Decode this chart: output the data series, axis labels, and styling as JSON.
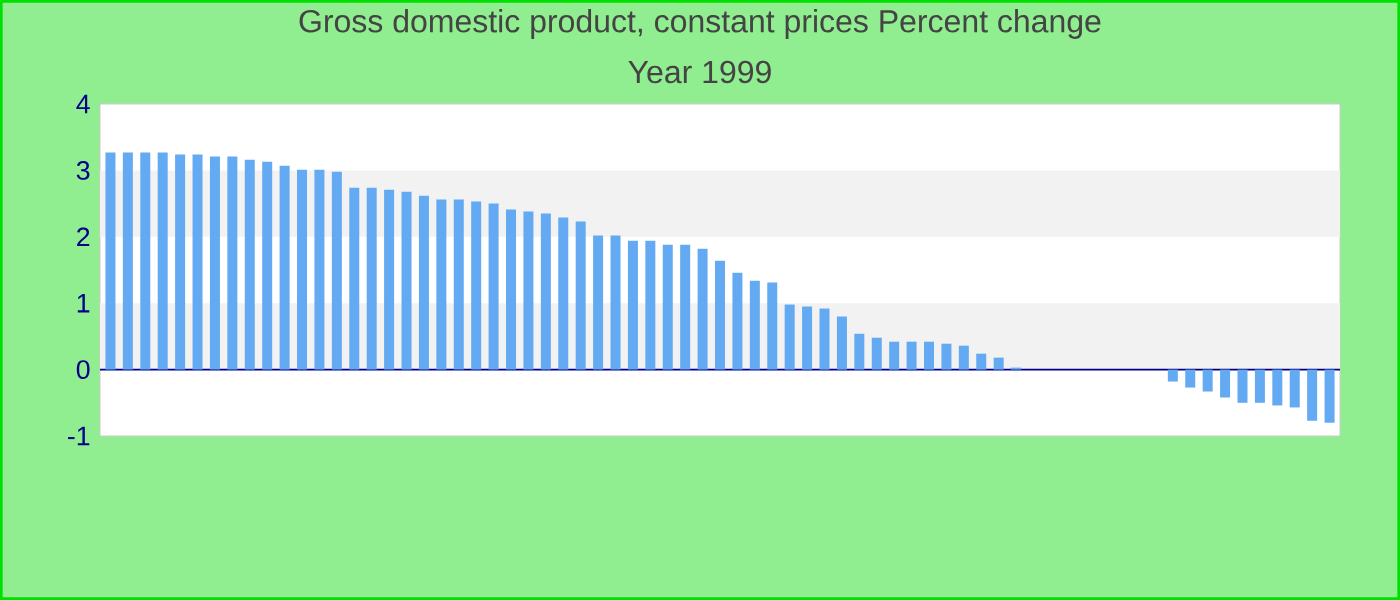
{
  "chart_data": {
    "type": "bar",
    "title": "Gross domestic product, constant prices  Percent change",
    "subtitle": "Year 1999",
    "categories": [
      null,
      null,
      null,
      null,
      null,
      null,
      null,
      null,
      null,
      null,
      null,
      null,
      null,
      null,
      null,
      null,
      null,
      null,
      null,
      null,
      null,
      null,
      null,
      null,
      null,
      null,
      null,
      null,
      null,
      null,
      null,
      null,
      null,
      null,
      null,
      null,
      null,
      null,
      null,
      null,
      null,
      null,
      null,
      null,
      null,
      null,
      null,
      null,
      null,
      null,
      null,
      null,
      null,
      null,
      null,
      null,
      null,
      null,
      null,
      null,
      null,
      null,
      null,
      null,
      null,
      null,
      null,
      null,
      null,
      null,
      null
    ],
    "values": [
      3.27,
      3.27,
      3.27,
      3.27,
      3.24,
      3.24,
      3.21,
      3.21,
      3.16,
      3.13,
      3.07,
      3.01,
      3.01,
      2.98,
      2.74,
      2.74,
      2.71,
      2.68,
      2.62,
      2.56,
      2.56,
      2.53,
      2.5,
      2.41,
      2.38,
      2.35,
      2.29,
      2.23,
      2.02,
      2.02,
      1.94,
      1.94,
      1.88,
      1.88,
      1.82,
      1.64,
      1.46,
      1.34,
      1.31,
      0.98,
      0.95,
      0.92,
      0.8,
      0.54,
      0.48,
      0.42,
      0.42,
      0.42,
      0.39,
      0.36,
      0.24,
      0.18,
      0.03,
      0,
      0,
      0,
      0,
      0,
      0,
      0,
      0,
      -0.18,
      -0.27,
      -0.33,
      -0.42,
      -0.5,
      -0.5,
      -0.54,
      -0.57,
      -0.77,
      -0.8
    ],
    "color": "#63aaf2",
    "ylim": [
      -1,
      4
    ],
    "yticks": [
      -1,
      0,
      1,
      2,
      3,
      4
    ],
    "bands": [
      {
        "axis": "y",
        "from": 0,
        "to": 1,
        "color": "#f2f2f2"
      },
      {
        "axis": "y",
        "from": 2,
        "to": 3,
        "color": "#f2f2f2"
      }
    ],
    "ref_lines": [
      {
        "axis": "y",
        "value": 0,
        "color": "#00008b"
      }
    ]
  }
}
